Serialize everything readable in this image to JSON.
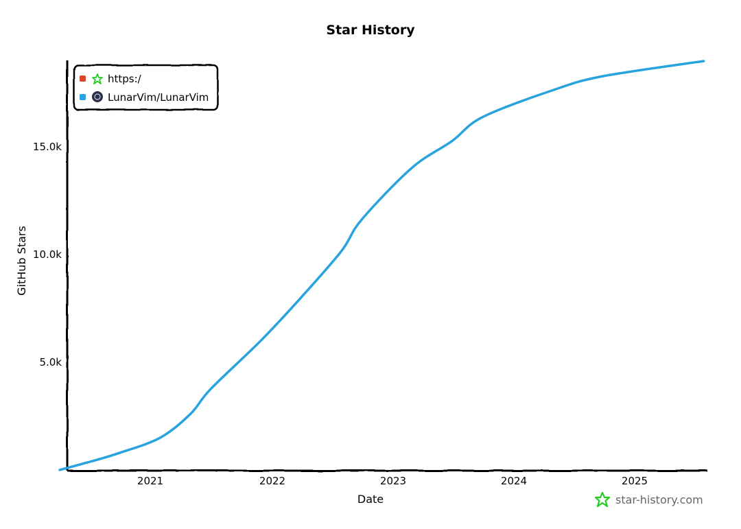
{
  "chart_data": {
    "type": "line",
    "title": "Star History",
    "xlabel": "Date",
    "ylabel": "GitHub Stars",
    "x_ticks": [
      "2021",
      "2022",
      "2023",
      "2024",
      "2025"
    ],
    "y_ticks": [
      "5.0k",
      "10.0k",
      "15.0k"
    ],
    "y_tick_values": [
      5000,
      10000,
      15000
    ],
    "xlim": [
      "2020-04",
      "2025-08"
    ],
    "ylim": [
      0,
      19000
    ],
    "grid": false,
    "legend_position": "top-left",
    "legend": [
      {
        "name": "https:/",
        "color": "#dd4528",
        "icon": "star-history-logo-icon"
      },
      {
        "name": "LunarVim/LunarVim",
        "color": "#28a3dd",
        "icon": "lunarvim-avatar-icon"
      }
    ],
    "series": [
      {
        "name": "LunarVim/LunarVim",
        "color": "#28a3dd",
        "x": [
          "2020-04",
          "2020-07",
          "2020-10",
          "2021-02",
          "2021-05",
          "2021-07",
          "2021-12",
          "2022-04",
          "2022-08",
          "2022-10",
          "2023-03",
          "2023-07",
          "2023-10",
          "2024-05",
          "2024-10",
          "2025-08"
        ],
        "values": [
          0,
          380,
          800,
          1500,
          2600,
          3750,
          6000,
          8000,
          10150,
          11600,
          14000,
          15250,
          16350,
          17600,
          18250,
          18950
        ]
      },
      {
        "name": "https:/",
        "color": "#dd4528",
        "x": [],
        "values": []
      }
    ]
  },
  "watermark": {
    "text": "star-history.com",
    "icon": "star-history-logo-icon"
  }
}
